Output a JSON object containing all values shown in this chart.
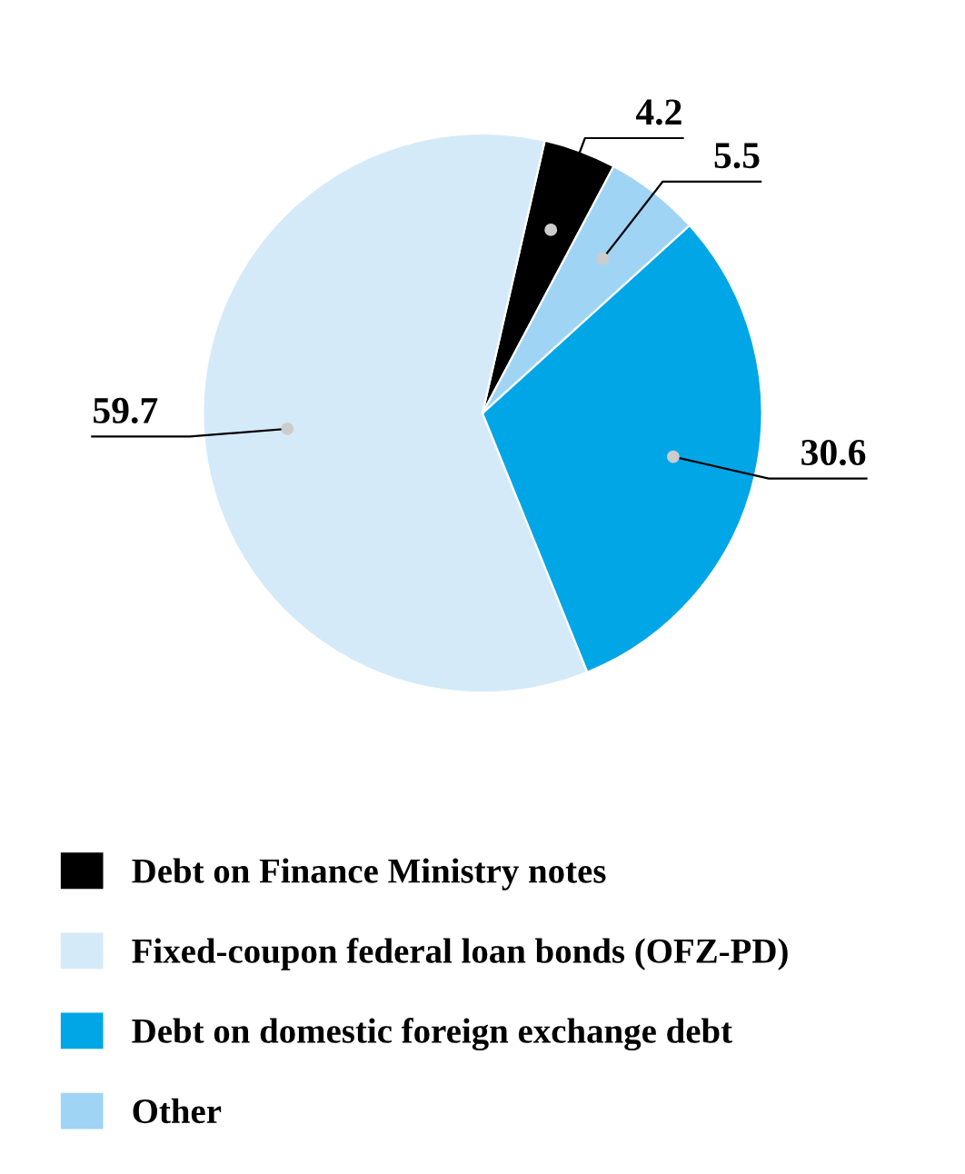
{
  "chart_data": {
    "type": "pie",
    "categories": [
      "Debt on Finance Ministry notes",
      "Fixed-coupon federal loan bonds (OFZ-PD)",
      "Debt on domestic foreign exchange debt",
      "Other"
    ],
    "values": [
      4.2,
      59.7,
      30.6,
      5.5
    ],
    "colors": [
      "#000000",
      "#d4eaf8",
      "#00a6e6",
      "#9fd4f5"
    ],
    "data_labels": true,
    "legend": "bottom"
  }
}
